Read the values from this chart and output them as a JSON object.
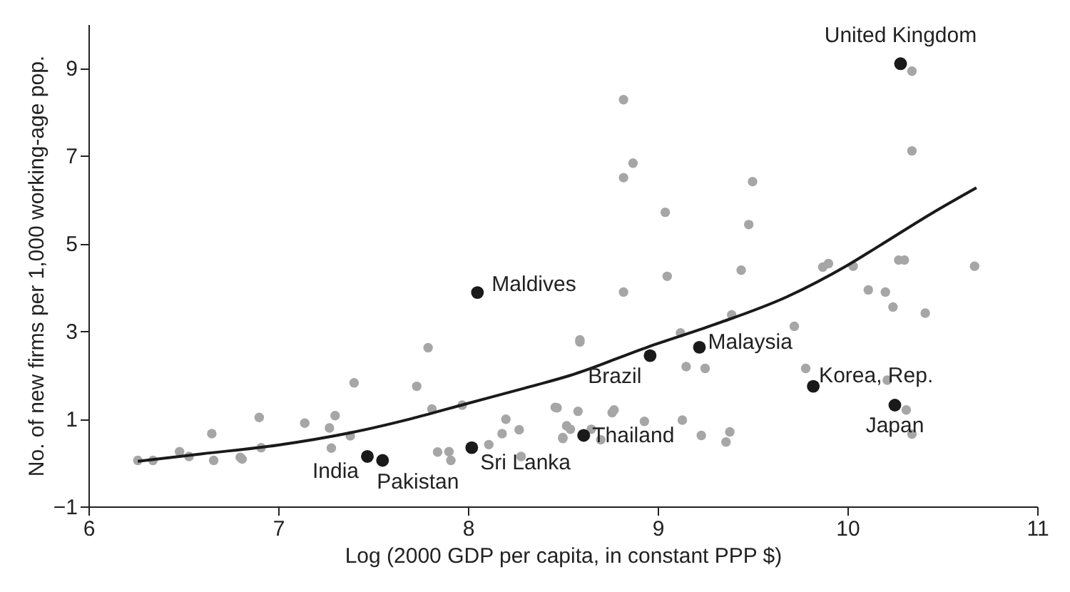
{
  "chart_data": {
    "type": "scatter",
    "xlabel": "Log (2000 GDP per capita, in constant PPP $)",
    "ylabel": "No. of new firms per 1,000 working-age pop.",
    "xlim": [
      6,
      11
    ],
    "xticks": [
      6,
      7,
      8,
      9,
      10,
      11
    ],
    "ylim": [
      -1,
      10
    ],
    "yticks": [
      -1,
      1,
      3,
      5,
      7,
      9
    ],
    "grid": false,
    "marker": "circle",
    "series": [
      {
        "color": "#a6a6a6",
        "x": [
          6.26,
          6.34,
          6.48,
          6.53,
          6.65,
          6.66,
          6.8,
          6.81,
          6.9,
          6.91,
          7.14,
          7.27,
          7.3,
          7.28,
          7.38,
          7.4,
          7.73,
          7.79,
          7.81,
          7.84,
          7.9,
          7.91,
          7.97,
          8.11,
          8.18,
          8.2,
          8.27,
          8.28,
          8.46,
          8.5,
          8.52,
          8.82,
          8.87,
          8.82,
          9.04,
          9.5,
          9.48,
          9.05,
          8.82,
          9.44,
          8.59,
          8.59,
          9.12,
          9.39,
          9.72,
          9.15,
          9.25,
          9.78,
          9.87,
          9.9,
          10.03,
          10.11,
          10.2,
          10.24,
          10.27,
          10.3,
          10.41,
          10.67,
          10.34,
          10.34,
          10.21,
          10.31,
          10.34,
          8.47,
          8.58,
          8.54,
          8.65,
          8.5,
          8.7,
          8.76,
          8.77,
          8.93,
          9.13,
          9.23,
          9.38,
          9.36
        ],
        "values": [
          0.05,
          0.05,
          0.25,
          0.14,
          0.66,
          0.05,
          0.12,
          0.08,
          1.03,
          0.34,
          0.9,
          0.79,
          1.07,
          0.33,
          0.61,
          1.82,
          1.74,
          2.62,
          1.22,
          0.24,
          0.25,
          0.05,
          1.31,
          0.41,
          0.66,
          0.99,
          0.75,
          0.14,
          1.26,
          0.57,
          0.84,
          8.28,
          6.83,
          6.5,
          5.71,
          6.41,
          5.43,
          4.25,
          3.89,
          4.39,
          2.8,
          2.75,
          2.96,
          3.37,
          3.11,
          2.19,
          2.15,
          2.15,
          4.46,
          4.54,
          4.48,
          3.94,
          3.89,
          3.55,
          4.62,
          4.62,
          3.41,
          4.48,
          8.93,
          7.11,
          1.88,
          1.2,
          0.65,
          1.25,
          1.17,
          0.76,
          0.76,
          0.55,
          0.52,
          1.14,
          1.2,
          0.94,
          0.97,
          0.62,
          0.7,
          0.47
        ]
      },
      {
        "color": "#1a1a1a",
        "x": [
          10.28,
          8.05,
          7.47,
          7.55,
          8.02,
          8.61,
          8.96,
          9.22,
          9.82,
          10.25
        ],
        "values": [
          9.1,
          3.88,
          0.14,
          0.05,
          0.34,
          0.62,
          2.44,
          2.63,
          1.74,
          1.31
        ]
      },
      {
        "type": "line",
        "color": "#1a1a1a",
        "marker": "none",
        "line_style": "solid",
        "x": [
          6.26,
          6.6,
          7.0,
          7.38,
          7.7,
          7.99,
          8.3,
          8.54,
          8.95,
          9.3,
          9.68,
          10.0,
          10.17,
          10.45,
          10.68
        ],
        "values": [
          0.03,
          0.2,
          0.4,
          0.68,
          1.0,
          1.34,
          1.7,
          1.99,
          2.64,
          3.15,
          3.78,
          4.5,
          4.95,
          5.7,
          6.27
        ]
      }
    ],
    "annotations": [
      {
        "text": "United Kingdom",
        "x": 10.28,
        "y": 9.1
      },
      {
        "text": "Maldives",
        "x": 8.05,
        "y": 3.88
      },
      {
        "text": "India",
        "x": 7.47,
        "y": 0.14
      },
      {
        "text": "Pakistan",
        "x": 7.55,
        "y": 0.05
      },
      {
        "text": "Sri Lanka",
        "x": 8.02,
        "y": 0.34
      },
      {
        "text": "Thailand",
        "x": 8.61,
        "y": 0.62
      },
      {
        "text": "Brazil",
        "x": 8.96,
        "y": 2.44
      },
      {
        "text": "Malaysia",
        "x": 9.22,
        "y": 2.63
      },
      {
        "text": "Korea, Rep.",
        "x": 9.82,
        "y": 1.74
      },
      {
        "text": "Japan",
        "x": 10.25,
        "y": 1.31
      }
    ]
  }
}
